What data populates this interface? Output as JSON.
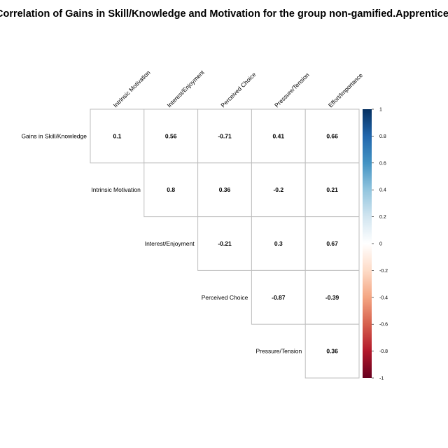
{
  "chart_data": {
    "type": "heatmap",
    "title": "Correlation of Gains in Skill/Knowledge and Motivation for the group non-gamified.Apprentice",
    "columns": [
      "Intrinsic Motivation",
      "Interest/Enjoyment",
      "Perceived Choice",
      "Pressure/Tension",
      "Effort/Importance"
    ],
    "rows": [
      "Gains in Skill/Knowledge",
      "Intrinsic Motivation",
      "Interest/Enjoyment",
      "Perceived Choice",
      "Pressure/Tension"
    ],
    "values": [
      [
        "0.1",
        "0.56",
        "-0.71",
        "0.41",
        "0.66"
      ],
      [
        null,
        "0.8",
        "0.36",
        "-0.2",
        "0.21"
      ],
      [
        null,
        null,
        "-0.21",
        "0.3",
        "0.67"
      ],
      [
        null,
        null,
        null,
        "-0.87",
        "-0.39"
      ],
      [
        null,
        null,
        null,
        null,
        "0.36"
      ]
    ],
    "colorbar": {
      "range": [
        -1,
        1
      ],
      "ticks": [
        "1",
        "0.8",
        "0.6",
        "0.4",
        "0.2",
        "0",
        "-0.2",
        "-0.4",
        "-0.6",
        "-0.8",
        "-1"
      ],
      "colors": [
        "#67001F",
        "#B2182B",
        "#D6604D",
        "#F4A582",
        "#FDDBC7",
        "#FFFFFF",
        "#D1E5F0",
        "#92C5DE",
        "#4393C3",
        "#2166AC",
        "#053061"
      ]
    },
    "grid_color": "#BEBEBE",
    "triangle": "upper"
  }
}
